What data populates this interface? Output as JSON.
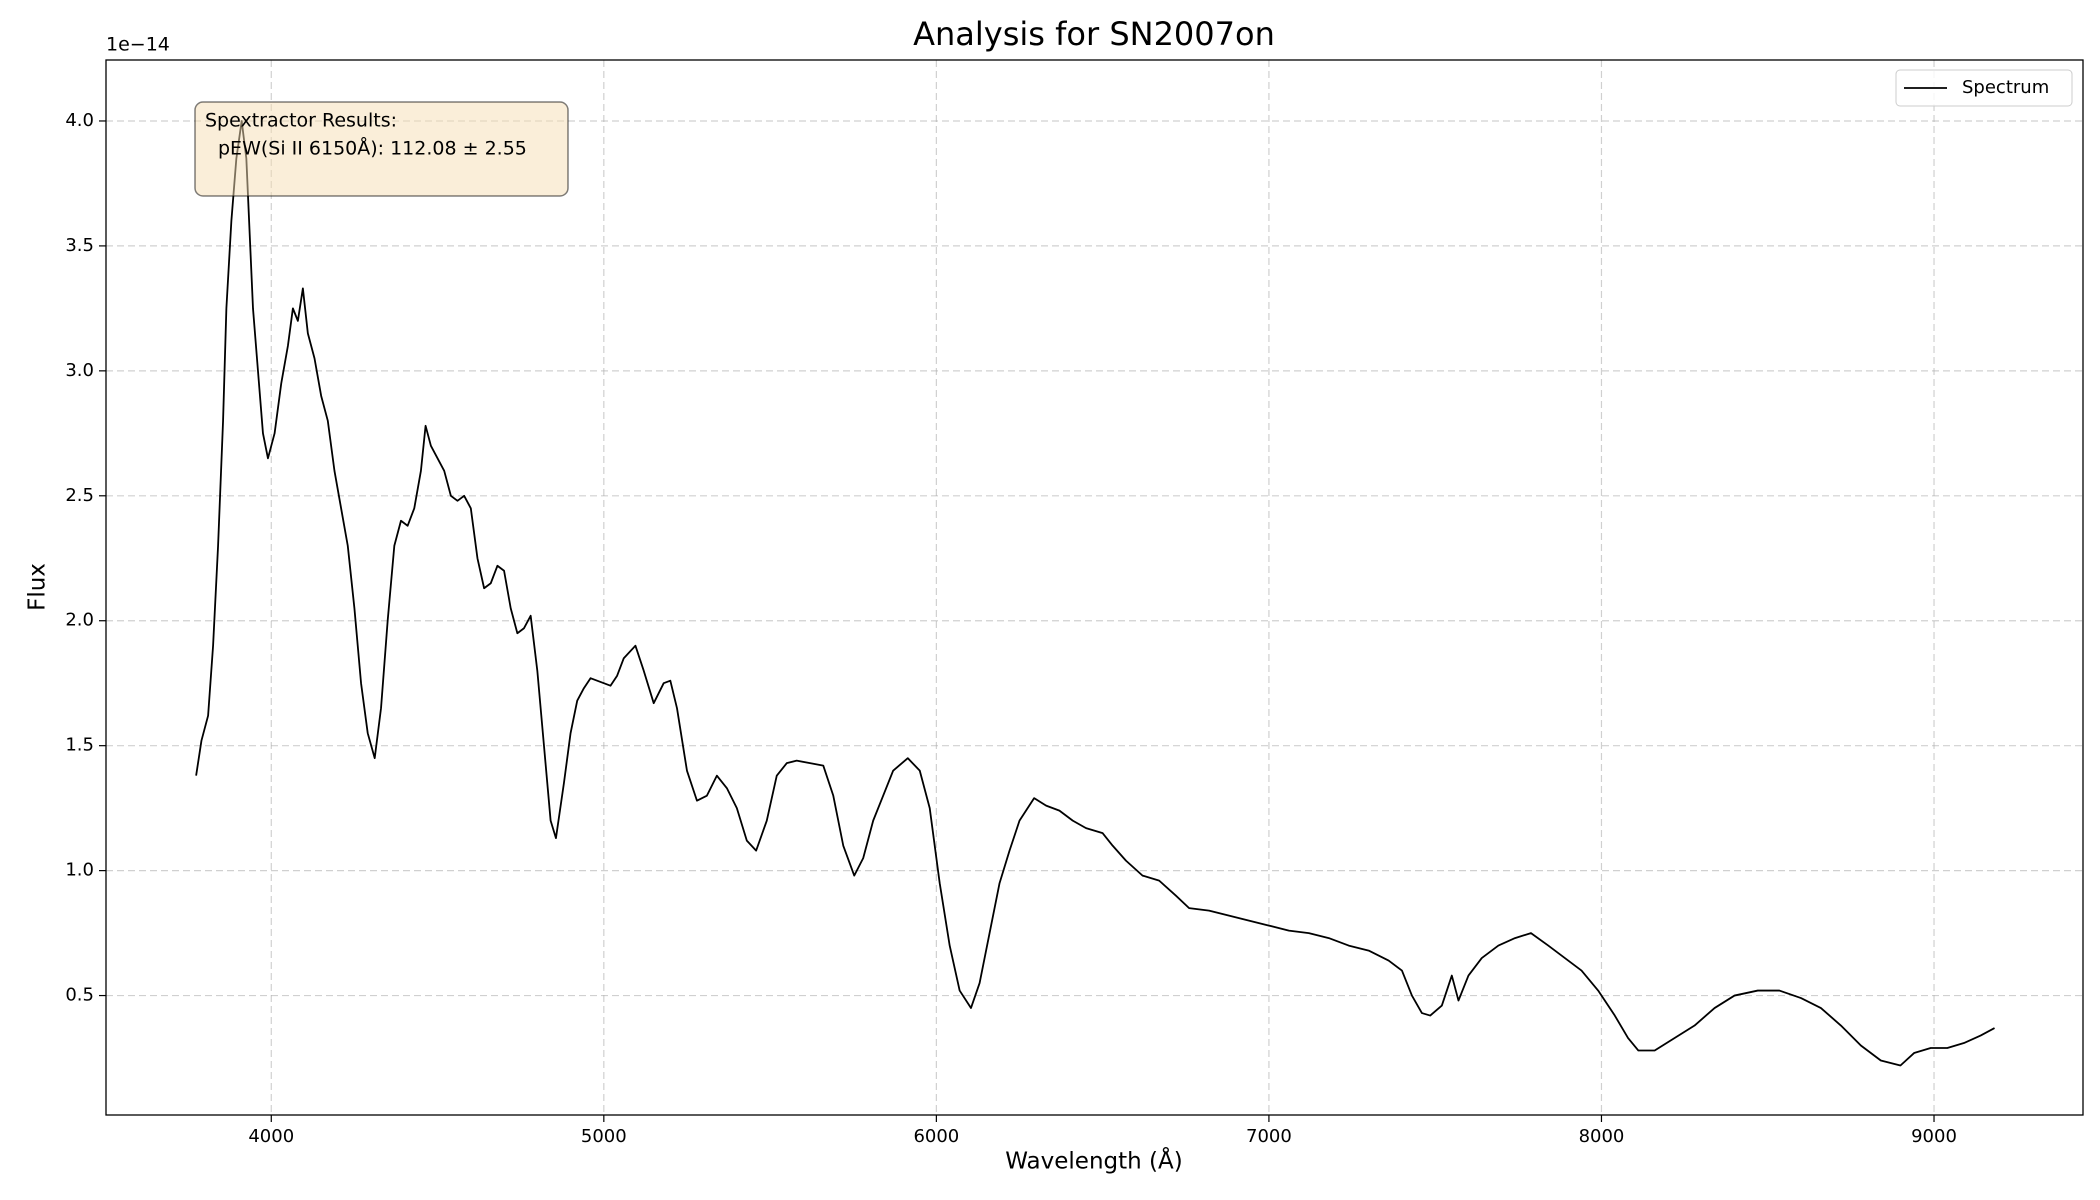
{
  "chart_data": {
    "type": "line",
    "title": "Analysis for SN2007on",
    "xlabel": "Wavelength (Å)",
    "ylabel": "Flux",
    "y_offset_label": "1e−14",
    "annotation": [
      "Spextractor Results:",
      "pEW(Si II 6150Å): 112.08 ± 2.55"
    ],
    "legend": "upper right",
    "grid": true,
    "xlim": [
      3503,
      9448
    ],
    "ylim": [
      0.022,
      4.244
    ],
    "xticks": [
      4000,
      5000,
      6000,
      7000,
      8000,
      9000
    ],
    "yticks": [
      {
        "value": 0.5,
        "label": "0.5"
      },
      {
        "value": 1,
        "label": "1.0"
      },
      {
        "value": 1.5,
        "label": "1.5"
      },
      {
        "value": 2,
        "label": "2.0"
      },
      {
        "value": 2.5,
        "label": "2.5"
      },
      {
        "value": 3,
        "label": "3.0"
      },
      {
        "value": 3.5,
        "label": "3.5"
      },
      {
        "value": 4,
        "label": "4.0"
      }
    ],
    "x": [
      3774,
      3790,
      3810,
      3825,
      3840,
      3855,
      3865,
      3880,
      3895,
      3911,
      3925,
      3935,
      3945,
      3960,
      3975,
      3990,
      4010,
      4030,
      4050,
      4065,
      4080,
      4095,
      4110,
      4130,
      4150,
      4170,
      4190,
      4210,
      4230,
      4250,
      4270,
      4290,
      4311,
      4330,
      4350,
      4370,
      4390,
      4410,
      4430,
      4450,
      4464,
      4480,
      4500,
      4520,
      4540,
      4560,
      4580,
      4600,
      4620,
      4640,
      4660,
      4680,
      4700,
      4720,
      4740,
      4760,
      4780,
      4800,
      4820,
      4840,
      4856,
      4880,
      4900,
      4920,
      4940,
      4960,
      4980,
      5000,
      5020,
      5040,
      5060,
      5095,
      5120,
      5150,
      5180,
      5200,
      5220,
      5250,
      5280,
      5310,
      5340,
      5370,
      5400,
      5430,
      5458,
      5490,
      5520,
      5550,
      5580,
      5620,
      5660,
      5690,
      5720,
      5753,
      5780,
      5810,
      5840,
      5870,
      5914,
      5950,
      5980,
      6010,
      6040,
      6070,
      6104,
      6130,
      6160,
      6190,
      6220,
      6250,
      6294,
      6330,
      6370,
      6410,
      6450,
      6500,
      6530,
      6570,
      6620,
      6670,
      6720,
      6760,
      6820,
      6880,
      6940,
      7000,
      7060,
      7120,
      7180,
      7240,
      7300,
      7360,
      7400,
      7430,
      7460,
      7485,
      7520,
      7550,
      7570,
      7600,
      7640,
      7690,
      7740,
      7788,
      7840,
      7880,
      7940,
      7990,
      8040,
      8080,
      8111,
      8160,
      8220,
      8280,
      8340,
      8400,
      8470,
      8535,
      8600,
      8660,
      8720,
      8780,
      8840,
      8899,
      8940,
      8990,
      9040,
      9090,
      9140,
      9182
    ],
    "series": [
      {
        "name": "Spectrum",
        "color": "#000000",
        "values": [
          1.38,
          1.52,
          1.62,
          1.9,
          2.3,
          2.8,
          3.25,
          3.6,
          3.85,
          4.0,
          3.85,
          3.55,
          3.25,
          3.0,
          2.75,
          2.65,
          2.75,
          2.95,
          3.1,
          3.25,
          3.2,
          3.33,
          3.15,
          3.05,
          2.9,
          2.8,
          2.6,
          2.45,
          2.3,
          2.05,
          1.75,
          1.55,
          1.45,
          1.65,
          2.0,
          2.3,
          2.4,
          2.38,
          2.45,
          2.6,
          2.78,
          2.7,
          2.65,
          2.6,
          2.5,
          2.48,
          2.5,
          2.45,
          2.25,
          2.13,
          2.15,
          2.22,
          2.2,
          2.05,
          1.95,
          1.97,
          2.02,
          1.8,
          1.5,
          1.2,
          1.13,
          1.35,
          1.55,
          1.68,
          1.73,
          1.77,
          1.76,
          1.75,
          1.74,
          1.78,
          1.85,
          1.9,
          1.8,
          1.67,
          1.75,
          1.76,
          1.65,
          1.4,
          1.28,
          1.3,
          1.38,
          1.33,
          1.25,
          1.12,
          1.08,
          1.2,
          1.38,
          1.43,
          1.44,
          1.43,
          1.42,
          1.3,
          1.1,
          0.98,
          1.05,
          1.2,
          1.3,
          1.4,
          1.45,
          1.4,
          1.25,
          0.95,
          0.7,
          0.52,
          0.45,
          0.55,
          0.75,
          0.95,
          1.08,
          1.2,
          1.29,
          1.26,
          1.24,
          1.2,
          1.17,
          1.15,
          1.1,
          1.04,
          0.98,
          0.96,
          0.9,
          0.85,
          0.84,
          0.82,
          0.8,
          0.78,
          0.76,
          0.75,
          0.73,
          0.7,
          0.68,
          0.64,
          0.6,
          0.5,
          0.43,
          0.42,
          0.46,
          0.58,
          0.48,
          0.58,
          0.65,
          0.7,
          0.73,
          0.75,
          0.7,
          0.66,
          0.6,
          0.52,
          0.42,
          0.33,
          0.28,
          0.28,
          0.33,
          0.38,
          0.45,
          0.5,
          0.52,
          0.52,
          0.49,
          0.45,
          0.38,
          0.3,
          0.24,
          0.22,
          0.27,
          0.29,
          0.29,
          0.31,
          0.34,
          0.37
        ]
      }
    ]
  }
}
